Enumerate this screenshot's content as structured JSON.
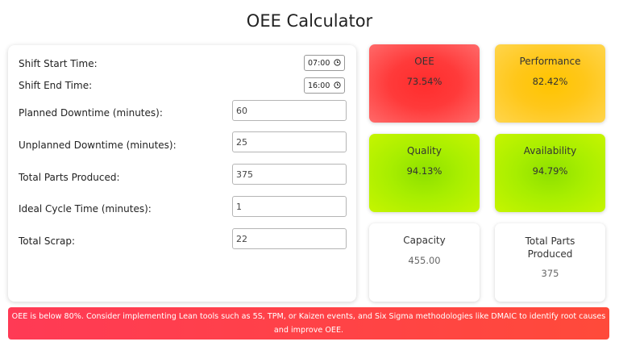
{
  "page": {
    "title": "OEE Calculator"
  },
  "form": {
    "shift_start": {
      "label": "Shift Start Time:",
      "value": "07:00"
    },
    "shift_end": {
      "label": "Shift End Time:",
      "value": "16:00"
    },
    "planned_downtime": {
      "label": "Planned Downtime (minutes):",
      "value": "60"
    },
    "unplanned_downtime": {
      "label": "Unplanned Downtime (minutes):",
      "value": "25"
    },
    "total_parts": {
      "label": "Total Parts Produced:",
      "value": "375"
    },
    "ideal_cycle": {
      "label": "Ideal Cycle Time (minutes):",
      "value": "1"
    },
    "total_scrap": {
      "label": "Total Scrap:",
      "value": "22"
    }
  },
  "metrics": {
    "oee": {
      "title": "OEE",
      "value": "73.54%",
      "color": "#ff2d2d"
    },
    "performance": {
      "title": "Performance",
      "value": "82.42%",
      "color": "#ffc400"
    },
    "quality": {
      "title": "Quality",
      "value": "94.13%",
      "color": "#8ee000"
    },
    "availability": {
      "title": "Availability",
      "value": "94.79%",
      "color": "#8ee000"
    },
    "capacity": {
      "title": "Capacity",
      "value": "455.00"
    },
    "total_parts": {
      "title": "Total Parts Produced",
      "value": "375"
    }
  },
  "alert": {
    "message": "OEE is below 80%. Consider implementing Lean tools such as 5S, TPM, or Kaizen events, and Six Sigma methodologies like DMAIC to identify root causes and improve OEE.",
    "color": "#ff3a55"
  },
  "icons": {
    "time_picker": "clock-icon"
  }
}
